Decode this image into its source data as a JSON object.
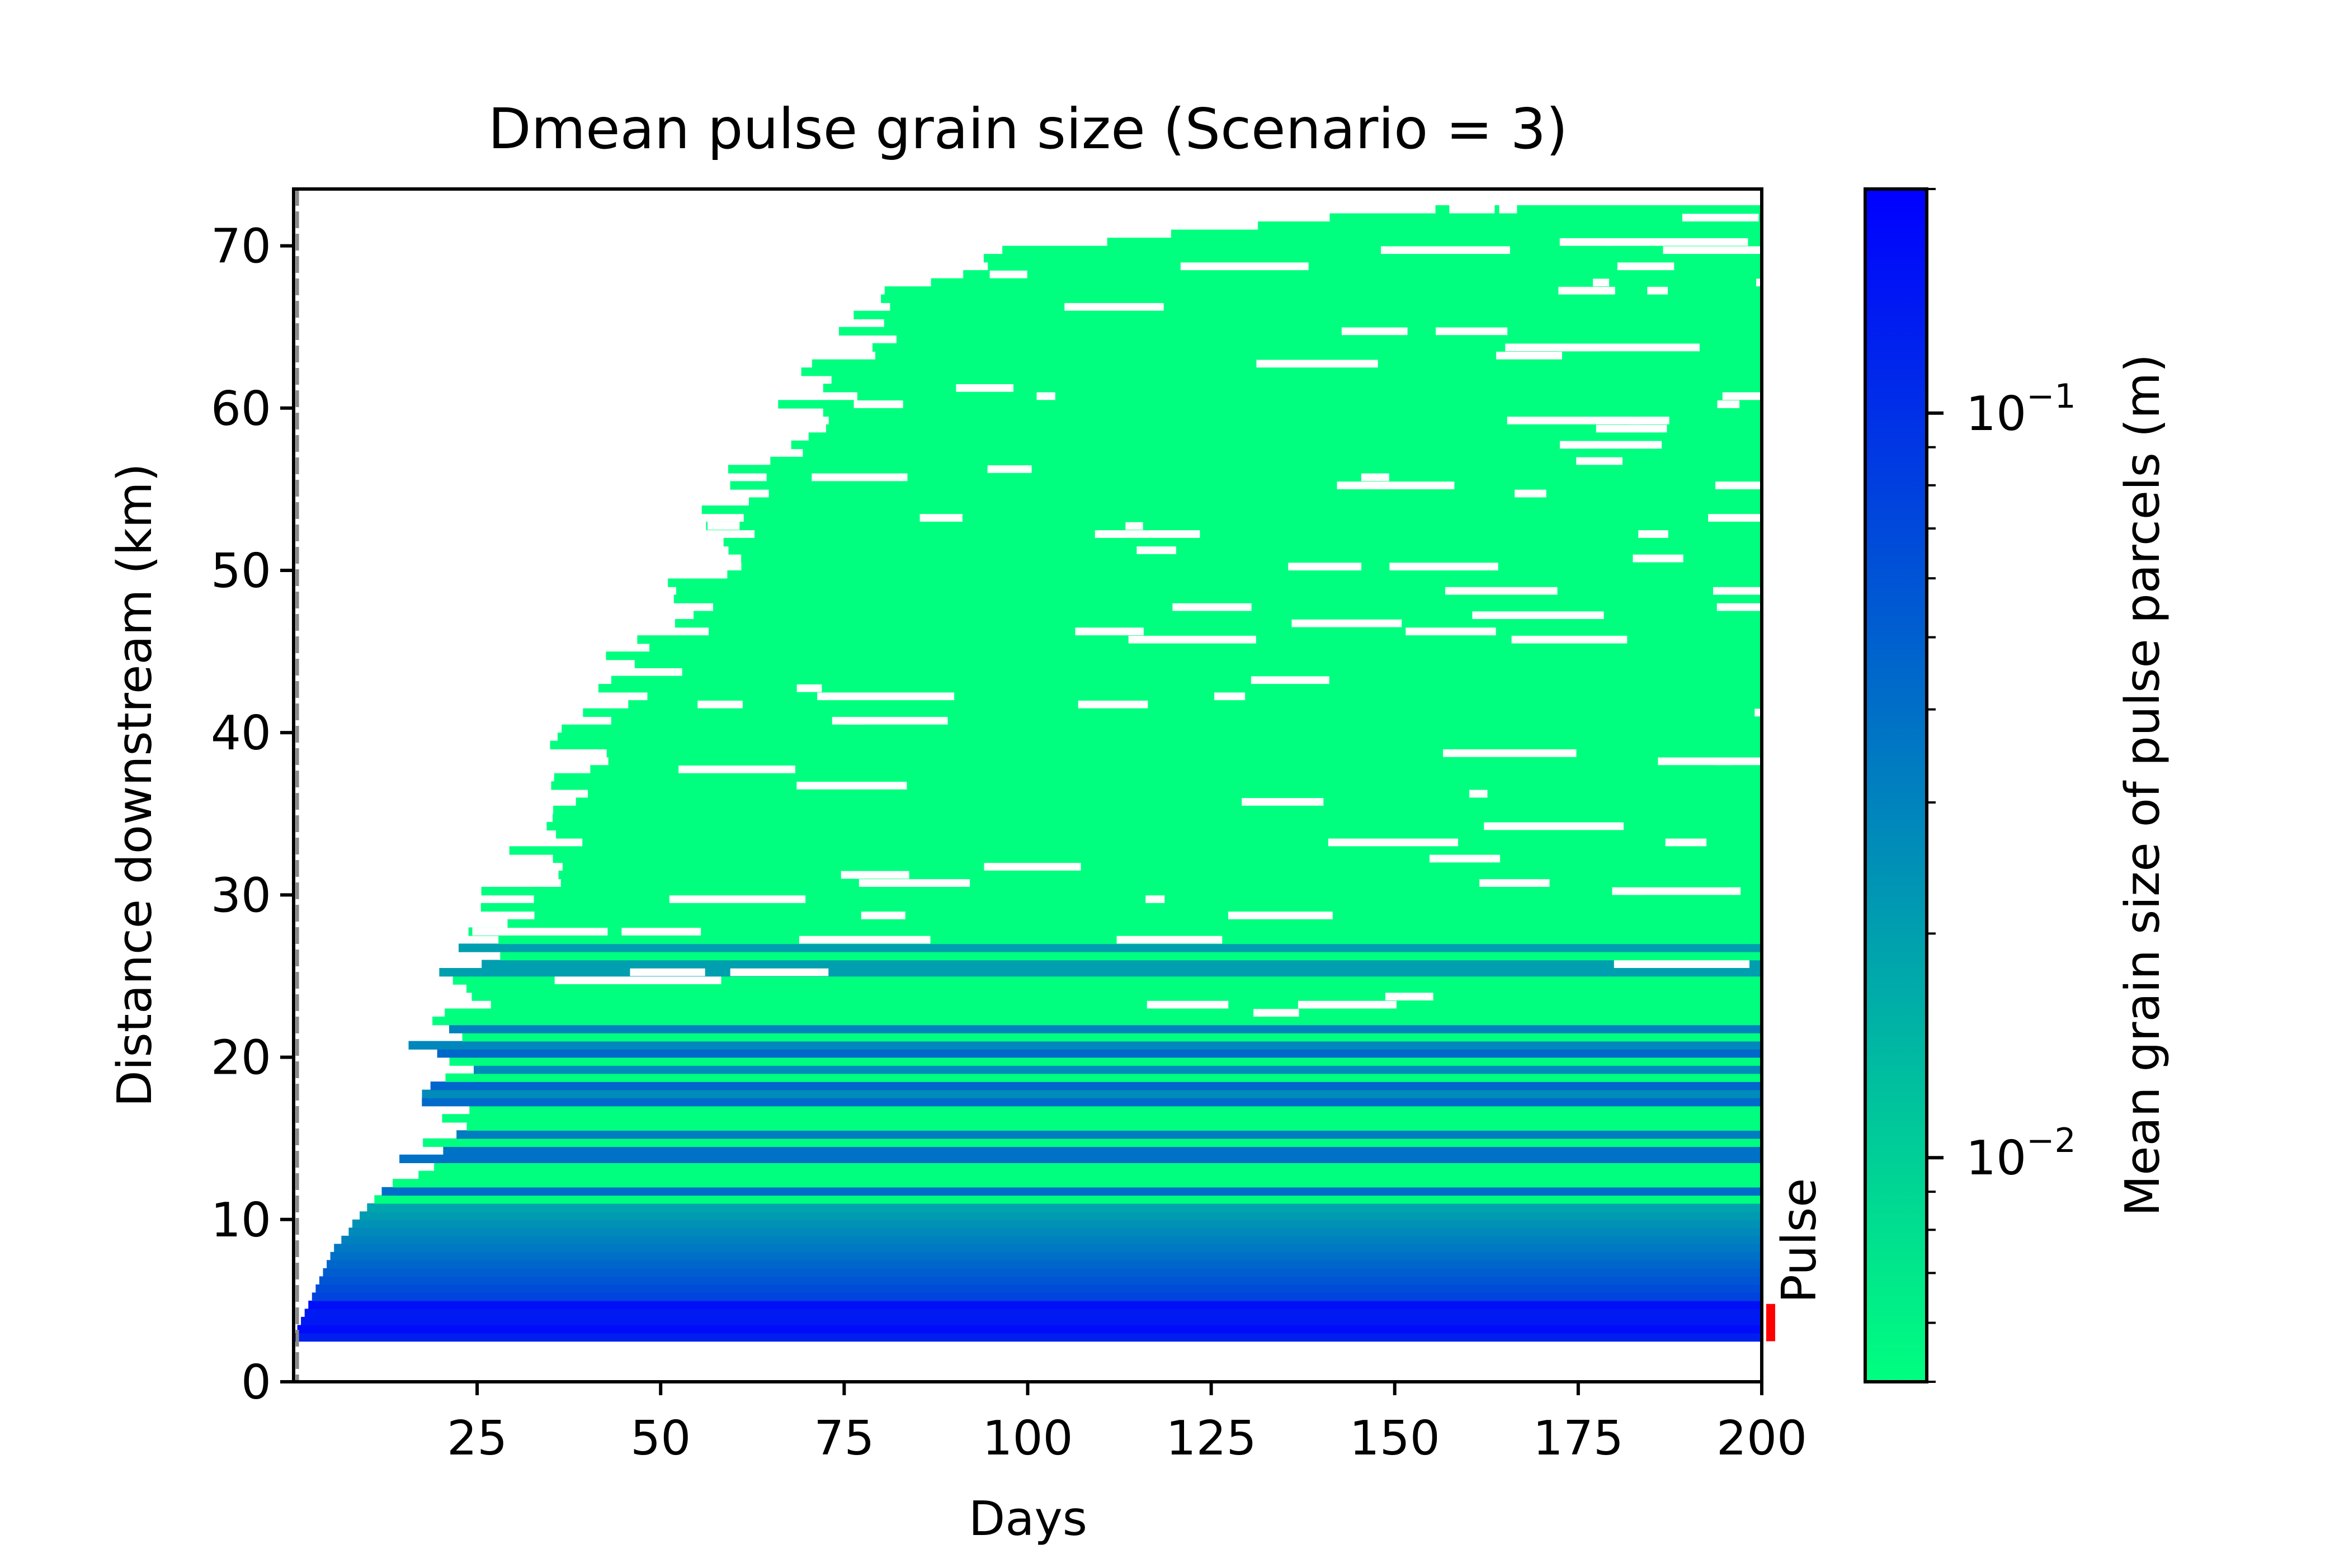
{
  "chart_data": {
    "type": "heatmap",
    "title": "Dmean pulse grain size (Scenario = 3)",
    "xlabel": "Days",
    "ylabel": "Distance downstream (km)",
    "xlim": [
      0,
      200
    ],
    "ylim": [
      0,
      73.5
    ],
    "xticks": [
      25,
      50,
      75,
      100,
      125,
      150,
      175,
      200
    ],
    "xtick_labels": [
      "25",
      "50",
      "75",
      "100",
      "125",
      "150",
      "175",
      "200"
    ],
    "yticks": [
      0,
      10,
      20,
      30,
      40,
      50,
      60,
      70
    ],
    "ytick_labels": [
      "0",
      "10",
      "20",
      "30",
      "40",
      "50",
      "60",
      "70"
    ],
    "grid": false,
    "colorbar": {
      "label": "Mean grain size of pulse parcels (m)",
      "scale": "log",
      "range": [
        0.005,
        0.2
      ],
      "colors": [
        "#00ff7f",
        "#0000ff"
      ],
      "major_ticks": [
        0.01,
        0.1
      ],
      "major_tick_labels": [
        "10",
        "10"
      ],
      "major_tick_exponents": [
        "−2",
        "−1"
      ]
    },
    "pulse_annotation": {
      "label": "Pulse",
      "color": "#ff0000",
      "y_range": [
        2.5,
        4.8
      ]
    },
    "front_profile": {
      "days": [
        0,
        5,
        10,
        15,
        20,
        30,
        40,
        50,
        60,
        70,
        80,
        90,
        100,
        120,
        140,
        160,
        180,
        200
      ],
      "upper_extent_km": [
        3,
        8,
        11,
        13,
        24,
        32,
        41,
        47,
        56,
        61,
        66,
        69,
        70,
        71,
        72,
        72.5,
        72.5,
        72.5
      ]
    },
    "coarse_zone": {
      "description_values_km": [
        2.5,
        4.8,
        11
      ],
      "values_m": [
        0.15,
        0.08,
        0.03
      ]
    }
  }
}
